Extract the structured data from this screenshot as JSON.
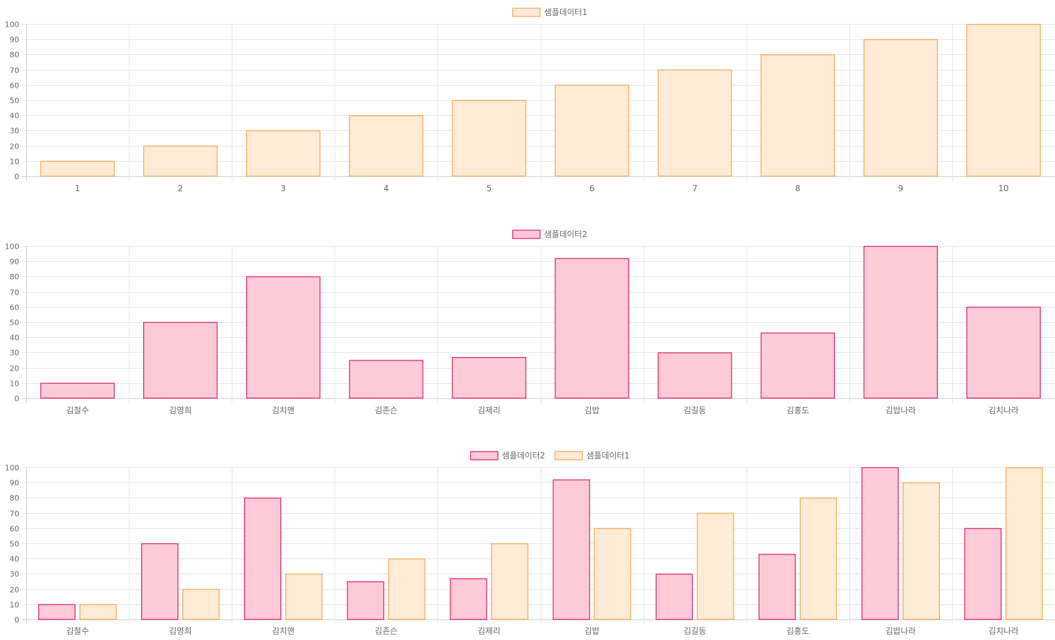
{
  "colors": {
    "orange_fill": "#ffebd6",
    "orange_border": "#f5a44e",
    "pink_fill": "#ffcad8",
    "pink_border": "#d81b60"
  },
  "chart_data": [
    {
      "type": "bar",
      "categories": [
        "1",
        "2",
        "3",
        "4",
        "5",
        "6",
        "7",
        "8",
        "9",
        "10"
      ],
      "series": [
        {
          "name": "샘플데이터1",
          "values": [
            10,
            20,
            30,
            40,
            50,
            60,
            70,
            80,
            90,
            100
          ],
          "color": "orange"
        }
      ],
      "ylim": [
        0,
        100
      ],
      "yticks": [
        0,
        10,
        20,
        30,
        40,
        50,
        60,
        70,
        80,
        90,
        100
      ],
      "grid": true,
      "legend": "top-center"
    },
    {
      "type": "bar",
      "categories": [
        "김철수",
        "김영희",
        "김치맨",
        "김존슨",
        "김제리",
        "김밥",
        "김길동",
        "김홍도",
        "김밥나라",
        "김치나라"
      ],
      "series": [
        {
          "name": "샘플데이터2",
          "values": [
            10,
            50,
            80,
            25,
            27,
            92,
            30,
            43,
            100,
            60
          ],
          "color": "pink"
        }
      ],
      "ylim": [
        0,
        100
      ],
      "yticks": [
        0,
        10,
        20,
        30,
        40,
        50,
        60,
        70,
        80,
        90,
        100
      ],
      "grid": true,
      "legend": "top-center"
    },
    {
      "type": "bar",
      "categories": [
        "김철수",
        "김영희",
        "김치맨",
        "김존슨",
        "김제리",
        "김밥",
        "김길동",
        "김홍도",
        "김밥나라",
        "김치나라"
      ],
      "series": [
        {
          "name": "샘플데이터2",
          "values": [
            10,
            50,
            80,
            25,
            27,
            92,
            30,
            43,
            100,
            60
          ],
          "color": "pink"
        },
        {
          "name": "샘플데이터1",
          "values": [
            10,
            20,
            30,
            40,
            50,
            60,
            70,
            80,
            90,
            100
          ],
          "color": "orange"
        }
      ],
      "ylim": [
        0,
        100
      ],
      "yticks": [
        0,
        10,
        20,
        30,
        40,
        50,
        60,
        70,
        80,
        90,
        100
      ],
      "grid": true,
      "legend": "top-center"
    }
  ]
}
